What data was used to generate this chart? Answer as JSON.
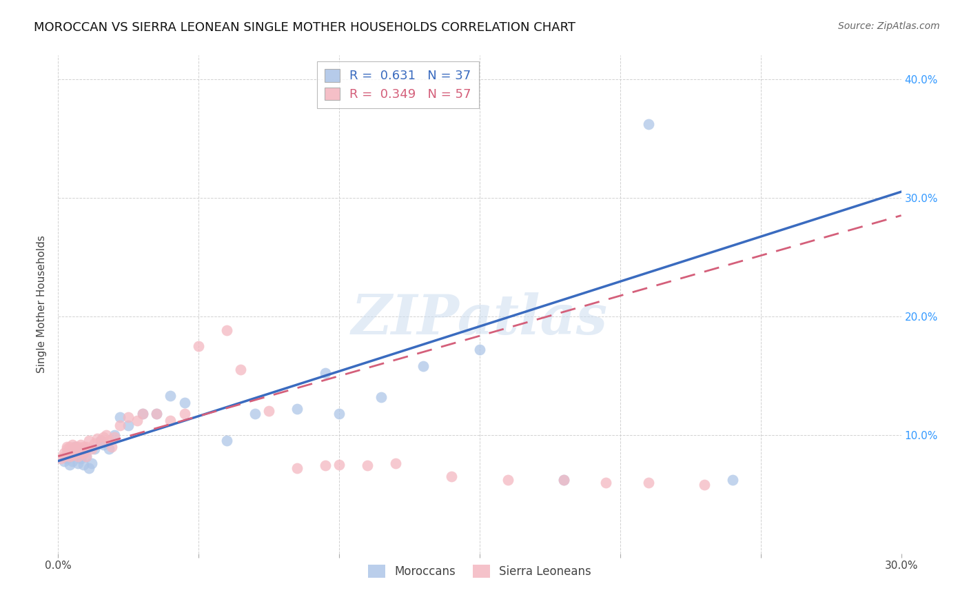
{
  "title": "MOROCCAN VS SIERRA LEONEAN SINGLE MOTHER HOUSEHOLDS CORRELATION CHART",
  "source": "Source: ZipAtlas.com",
  "ylabel": "Single Mother Households",
  "xlim": [
    0.0,
    0.3
  ],
  "ylim": [
    0.0,
    0.42
  ],
  "moroccan_R": 0.631,
  "moroccan_N": 37,
  "sierra_R": 0.349,
  "sierra_N": 57,
  "moroccan_color": "#aec6e8",
  "sierra_color": "#f4b8c1",
  "moroccan_line_color": "#3a6bbf",
  "sierra_line_color": "#d45f7a",
  "watermark": "ZIPatlas",
  "moroccan_x": [
    0.002,
    0.003,
    0.004,
    0.004,
    0.005,
    0.005,
    0.006,
    0.006,
    0.007,
    0.007,
    0.008,
    0.009,
    0.01,
    0.011,
    0.012,
    0.013,
    0.015,
    0.016,
    0.018,
    0.02,
    0.022,
    0.025,
    0.03,
    0.035,
    0.04,
    0.045,
    0.06,
    0.07,
    0.085,
    0.095,
    0.1,
    0.115,
    0.13,
    0.15,
    0.18,
    0.21,
    0.24
  ],
  "moroccan_y": [
    0.078,
    0.08,
    0.075,
    0.082,
    0.085,
    0.078,
    0.09,
    0.083,
    0.076,
    0.086,
    0.08,
    0.075,
    0.082,
    0.072,
    0.076,
    0.088,
    0.095,
    0.092,
    0.088,
    0.1,
    0.115,
    0.108,
    0.118,
    0.118,
    0.133,
    0.127,
    0.095,
    0.118,
    0.122,
    0.152,
    0.118,
    0.132,
    0.158,
    0.172,
    0.062,
    0.362,
    0.062
  ],
  "sierra_x": [
    0.001,
    0.002,
    0.002,
    0.003,
    0.003,
    0.003,
    0.004,
    0.004,
    0.004,
    0.005,
    0.005,
    0.005,
    0.006,
    0.006,
    0.006,
    0.007,
    0.007,
    0.007,
    0.008,
    0.008,
    0.008,
    0.009,
    0.009,
    0.01,
    0.01,
    0.011,
    0.012,
    0.013,
    0.014,
    0.015,
    0.016,
    0.017,
    0.018,
    0.019,
    0.02,
    0.022,
    0.025,
    0.028,
    0.03,
    0.035,
    0.04,
    0.045,
    0.05,
    0.06,
    0.065,
    0.075,
    0.085,
    0.095,
    0.1,
    0.11,
    0.12,
    0.14,
    0.16,
    0.18,
    0.195,
    0.21,
    0.23
  ],
  "sierra_y": [
    0.08,
    0.085,
    0.082,
    0.083,
    0.088,
    0.09,
    0.082,
    0.085,
    0.09,
    0.083,
    0.085,
    0.092,
    0.088,
    0.09,
    0.085,
    0.088,
    0.082,
    0.09,
    0.085,
    0.088,
    0.092,
    0.09,
    0.085,
    0.082,
    0.09,
    0.095,
    0.088,
    0.093,
    0.097,
    0.095,
    0.098,
    0.1,
    0.095,
    0.09,
    0.098,
    0.108,
    0.115,
    0.112,
    0.118,
    0.118,
    0.112,
    0.118,
    0.175,
    0.188,
    0.155,
    0.12,
    0.072,
    0.074,
    0.075,
    0.074,
    0.076,
    0.065,
    0.062,
    0.062,
    0.06,
    0.06,
    0.058
  ]
}
